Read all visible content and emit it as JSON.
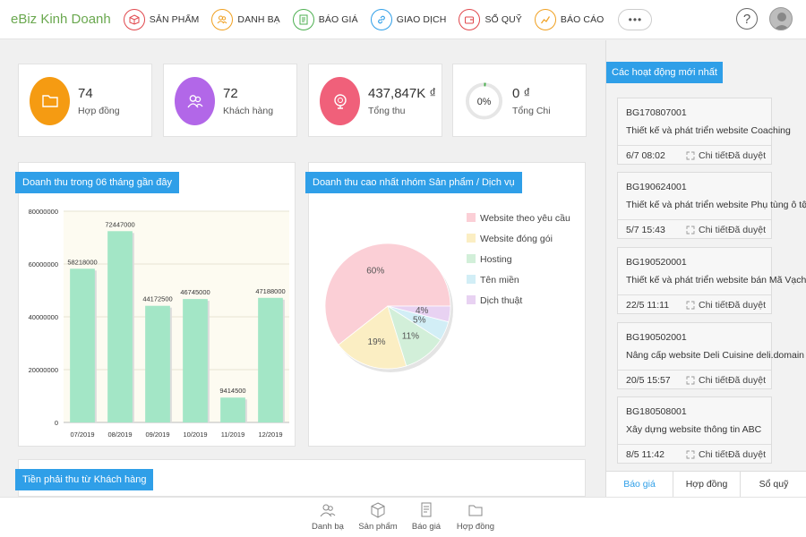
{
  "app": {
    "brand": "eBiz Kinh Doanh"
  },
  "nav": [
    {
      "label": "SẢN PHẨM",
      "icon": "box-icon",
      "color": "#e0474c"
    },
    {
      "label": "DANH BẠ",
      "icon": "contacts-icon",
      "color": "#f0a020"
    },
    {
      "label": "BÁO GIÁ",
      "icon": "quote-icon",
      "color": "#4caf50"
    },
    {
      "label": "GIAO DỊCH",
      "icon": "link-icon",
      "color": "#2f9fe8"
    },
    {
      "label": "SỔ QUỸ",
      "icon": "wallet-icon",
      "color": "#e0474c"
    },
    {
      "label": "BÁO CÁO",
      "icon": "report-icon",
      "color": "#f0a020"
    }
  ],
  "more_label": "•••",
  "help_label": "?",
  "stats": [
    {
      "value": "74",
      "label": "Hợp đồng",
      "icon": "folder-icon",
      "color": "#f59b12"
    },
    {
      "value": "72",
      "label": "Khách hàng",
      "icon": "users-icon",
      "color": "#b267e8"
    },
    {
      "value": "437,847K ₫",
      "label": "Tổng thu",
      "icon": "piggy-bank-icon",
      "color": "#f0607a"
    },
    {
      "value": "0 ₫",
      "label": "Tổng Chi",
      "icon": "progress-ring-icon",
      "color": "#4caf50",
      "percent_label": "0%"
    }
  ],
  "revenue_panel": {
    "title": "Doanh thu trong 06 tháng gần đây"
  },
  "top_products_panel": {
    "title": "Doanh thu cao nhất nhóm Sản phẩm / Dịch vụ"
  },
  "receivables_panel": {
    "title": "Tiền phải thu từ Khách hàng"
  },
  "chart_data": [
    {
      "type": "bar",
      "categories": [
        "07/2019",
        "08/2019",
        "09/2019",
        "10/2019",
        "11/2019",
        "12/2019"
      ],
      "values": [
        58218000,
        72447000,
        44172500,
        46745000,
        9414500,
        47188000
      ],
      "value_labels": [
        "58218000",
        "72447000",
        "44172500",
        "46745000",
        "9414500",
        "47188000"
      ],
      "ylim": [
        0,
        80000000
      ],
      "yticks": [
        0,
        20000000,
        40000000,
        60000000,
        80000000
      ],
      "ytick_labels": [
        "0",
        "20000000",
        "40000000",
        "60000000",
        "80000000"
      ],
      "color": "#a3e6c6",
      "grid": true
    },
    {
      "type": "pie",
      "categories": [
        "Website theo yêu cầu",
        "Website đóng gói",
        "Hosting",
        "Tên miền",
        "Dịch thuật"
      ],
      "values": [
        60,
        19,
        11,
        5,
        4
      ],
      "value_labels": [
        "60%",
        "19%",
        "11%",
        "5%",
        "4%"
      ],
      "colors": [
        "#fbcfd6",
        "#fbeec3",
        "#d2efd9",
        "#d2eef6",
        "#e8d2f2"
      ],
      "legend": "right"
    }
  ],
  "activity": {
    "title": "Các hoạt động mới nhất",
    "detail_label": "Chi tiết",
    "items": [
      {
        "code": "BG170807001",
        "desc": "Thiết kế và phát triển website Coaching",
        "date": "6/7 08:02",
        "status": "Đã duyệt"
      },
      {
        "code": "BG190624001",
        "desc": "Thiết kế và phát triển website Phụ tùng ô tô",
        "date": "5/7 15:43",
        "status": "Đã duyệt"
      },
      {
        "code": "BG190520001",
        "desc": "Thiết kế và phát triển website bán Mã Vạch",
        "date": "22/5 11:11",
        "status": "Đã duyệt"
      },
      {
        "code": "BG190502001",
        "desc": "Nâng cấp website Deli Cuisine deli.domain",
        "date": "20/5 15:57",
        "status": "Đã duyệt"
      },
      {
        "code": "BG180508001",
        "desc": "Xây dựng website thông tin ABC",
        "date": "8/5 11:42",
        "status": "Đã duyệt"
      }
    ],
    "tabs": [
      "Báo giá",
      "Hợp đồng",
      "Sổ quỹ"
    ]
  },
  "bottom_nav": [
    {
      "label": "Danh bạ",
      "icon": "contacts-icon"
    },
    {
      "label": "Sản phẩm",
      "icon": "box-icon"
    },
    {
      "label": "Báo giá",
      "icon": "quote-icon"
    },
    {
      "label": "Hợp đồng",
      "icon": "folder-icon"
    }
  ]
}
